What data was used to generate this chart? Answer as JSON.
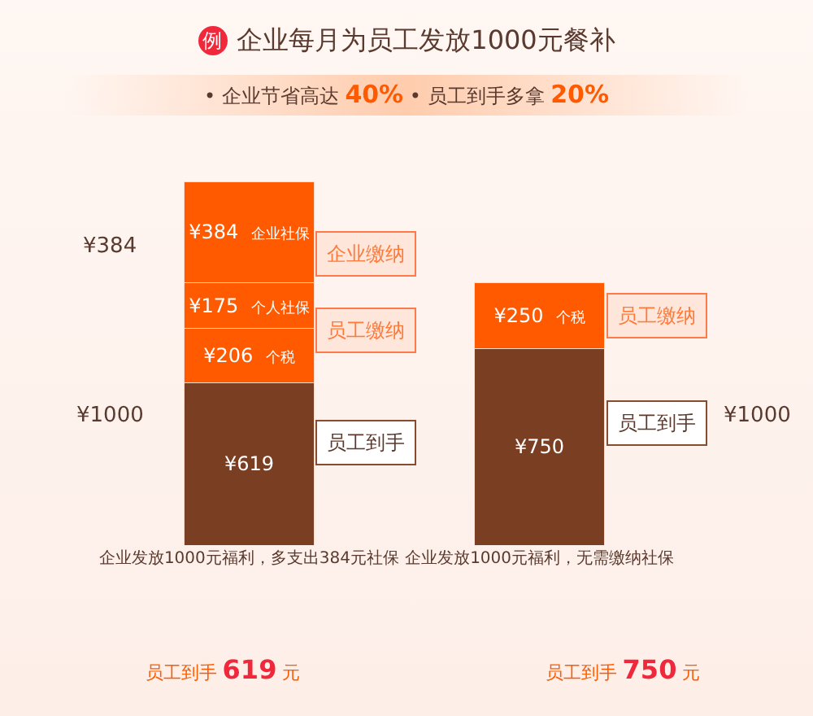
{
  "chart_data": {
    "type": "bar",
    "title": "企业每月为员工发放1000元餐补",
    "subtitle": "• 企业节省高达 40%   • 员工到手多拿 20%",
    "categories": [
      "企业发放1000元福利，多支出384元社保",
      "企业发放1000元福利，无需缴纳社保"
    ],
    "stacked": true,
    "series": [
      {
        "color": "#7a3e22",
        "values": [
          619,
          750
        ],
        "value_labels": [
          "¥619",
          "¥750"
        ]
      },
      {
        "name": "个税",
        "color": "#ff5a00",
        "values": [
          206,
          250
        ],
        "value_labels": [
          "¥206",
          "¥250"
        ]
      },
      {
        "name": "个人社保",
        "color": "#ff5a00",
        "values": [
          175,
          null
        ],
        "value_labels": [
          "¥175",
          null
        ]
      },
      {
        "name": "企业社保",
        "color": "#ff5a00",
        "values": [
          384,
          null
        ],
        "value_labels": [
          "¥384",
          null
        ]
      }
    ],
    "annotations": [
      "例",
      "员工到手 619 元",
      "员工到手 750 元",
      "企业缴纳",
      "员工缴纳",
      "员工到手",
      "员工缴纳",
      "员工到手",
      "¥384",
      "¥1000",
      "¥1000"
    ]
  }
}
